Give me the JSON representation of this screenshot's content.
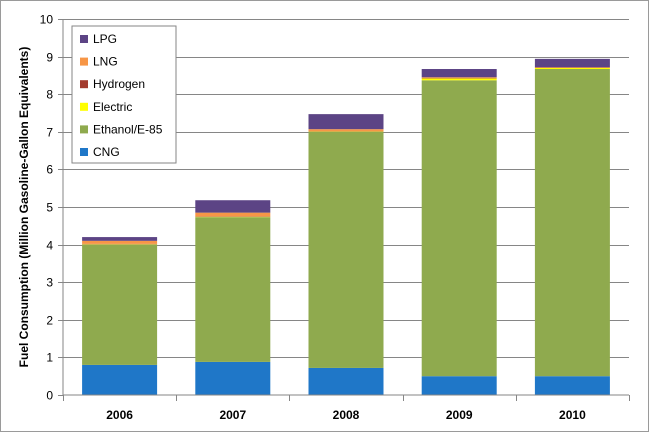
{
  "chart_data": {
    "type": "bar",
    "stacked": true,
    "title": "",
    "xlabel": "",
    "ylabel": "Fuel Consumption  (Million Gasoline-Gallon  Equivalents)",
    "categories": [
      "2006",
      "2007",
      "2008",
      "2009",
      "2010"
    ],
    "ylim": [
      0,
      10
    ],
    "yticks": [
      0,
      1,
      2,
      3,
      4,
      5,
      6,
      7,
      8,
      9,
      10
    ],
    "grid": true,
    "legend_position": "top-left",
    "series": [
      {
        "name": "CNG",
        "color": "#1f77c8",
        "values": [
          0.8,
          0.88,
          0.72,
          0.5,
          0.5
        ]
      },
      {
        "name": "Ethanol/E-85",
        "color": "#8faa4e",
        "values": [
          3.2,
          3.85,
          6.28,
          7.87,
          8.17
        ]
      },
      {
        "name": "Electric",
        "color": "#ffff00",
        "values": [
          0.01,
          0.01,
          0.01,
          0.05,
          0.03
        ]
      },
      {
        "name": "Hydrogen",
        "color": "#a33b2e",
        "values": [
          0.01,
          0.01,
          0.01,
          0.01,
          0.01
        ]
      },
      {
        "name": "LNG",
        "color": "#f79646",
        "values": [
          0.08,
          0.1,
          0.05,
          0.02,
          0.01
        ]
      },
      {
        "name": "LPG",
        "color": "#5c4485",
        "values": [
          0.1,
          0.33,
          0.4,
          0.22,
          0.22
        ]
      }
    ]
  }
}
